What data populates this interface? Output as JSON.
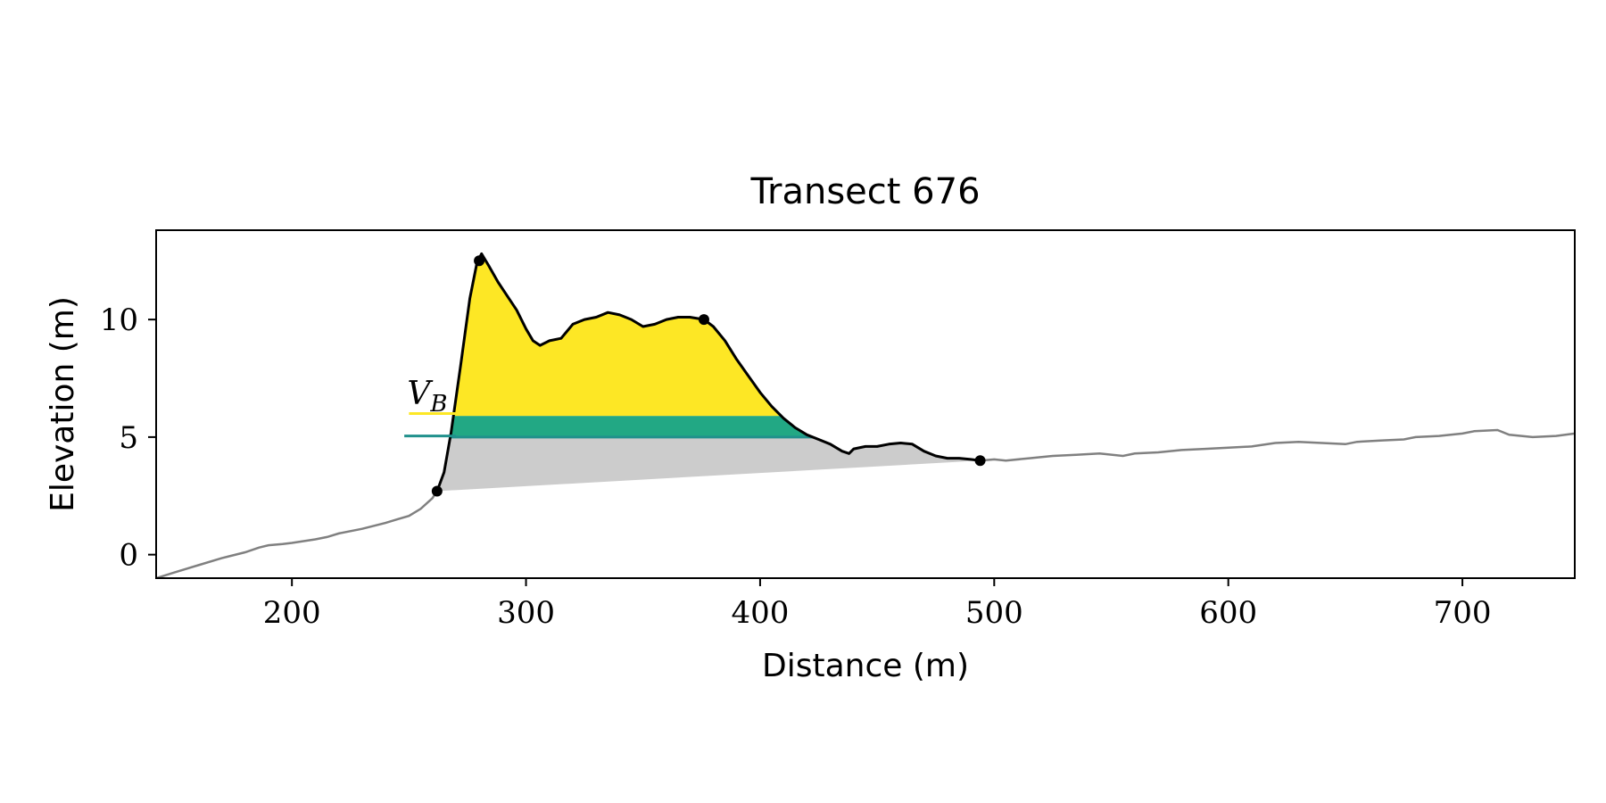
{
  "chart_data": {
    "type": "area",
    "title": "Transect 676",
    "xlabel": "Distance (m)",
    "ylabel": "Elevation (m)",
    "xlim": [
      142,
      748
    ],
    "ylim": [
      -1,
      13.8
    ],
    "xticks": [
      200,
      300,
      400,
      500,
      600,
      700
    ],
    "xtick_labels": [
      "200",
      "300",
      "400",
      "500",
      "600",
      "700"
    ],
    "yticks": [
      0,
      5,
      10
    ],
    "ytick_labels": [
      "0",
      "5",
      "10"
    ],
    "grid": false,
    "annotation": {
      "text": "V",
      "subscript": "B"
    },
    "colors": {
      "profile": "#808080",
      "dune": "#000000",
      "upper_fill": "#fde725",
      "middle_fill": "#22a884",
      "lower_fill": "#cccccc",
      "yellow_marker": "#fde725",
      "teal_marker": "#21918c"
    },
    "levels": {
      "upper": 5.9,
      "base": 5.0
    },
    "marker_segments": [
      {
        "y": 6.0,
        "x_start": 250,
        "x_end": 270,
        "color": "#fde725"
      },
      {
        "y": 5.05,
        "x_start": 248,
        "x_end": 270,
        "color": "#21918c"
      }
    ],
    "key_points": [
      {
        "x": 262,
        "y": 2.7
      },
      {
        "x": 280,
        "y": 12.5
      },
      {
        "x": 376,
        "y": 10.0
      },
      {
        "x": 494,
        "y": 4.0
      }
    ],
    "profile": {
      "x": [
        142,
        150,
        160,
        170,
        180,
        186,
        190,
        196,
        200,
        210,
        215,
        220,
        230,
        240,
        245,
        250,
        255,
        260
      ],
      "y": [
        -1.0,
        -0.75,
        -0.45,
        -0.15,
        0.1,
        0.3,
        0.4,
        0.45,
        0.5,
        0.65,
        0.75,
        0.9,
        1.1,
        1.35,
        1.5,
        1.65,
        1.95,
        2.4
      ]
    },
    "profile_right": {
      "x": [
        494,
        500,
        505,
        515,
        525,
        535,
        545,
        555,
        560,
        570,
        580,
        590,
        600,
        610,
        620,
        630,
        640,
        650,
        655,
        665,
        675,
        680,
        690,
        700,
        705,
        715,
        720,
        730,
        740,
        748
      ],
      "y": [
        4.0,
        4.05,
        4.0,
        4.1,
        4.2,
        4.25,
        4.3,
        4.2,
        4.3,
        4.35,
        4.45,
        4.5,
        4.55,
        4.6,
        4.75,
        4.8,
        4.75,
        4.7,
        4.8,
        4.85,
        4.9,
        5.0,
        5.05,
        5.15,
        5.25,
        5.3,
        5.1,
        5.0,
        5.05,
        5.15
      ]
    },
    "dune": {
      "x": [
        262,
        265,
        268,
        272,
        276,
        279,
        281,
        284,
        288,
        292,
        296,
        300,
        303,
        306,
        310,
        315,
        320,
        325,
        330,
        335,
        340,
        345,
        350,
        355,
        360,
        365,
        370,
        376,
        380,
        385,
        390,
        395,
        400,
        405,
        410,
        415,
        420,
        425,
        430,
        435,
        438,
        440,
        445,
        450,
        455,
        460,
        465,
        470,
        475,
        480,
        485,
        490,
        494
      ],
      "y": [
        2.7,
        3.5,
        5.2,
        8.0,
        10.9,
        12.4,
        12.8,
        12.3,
        11.6,
        11.0,
        10.4,
        9.6,
        9.1,
        8.9,
        9.1,
        9.2,
        9.8,
        10.0,
        10.1,
        10.3,
        10.2,
        10.0,
        9.7,
        9.8,
        10.0,
        10.1,
        10.1,
        10.0,
        9.7,
        9.1,
        8.3,
        7.6,
        6.9,
        6.3,
        5.8,
        5.4,
        5.1,
        4.9,
        4.7,
        4.4,
        4.3,
        4.5,
        4.6,
        4.6,
        4.7,
        4.75,
        4.7,
        4.4,
        4.2,
        4.1,
        4.1,
        4.05,
        4.0
      ]
    }
  }
}
